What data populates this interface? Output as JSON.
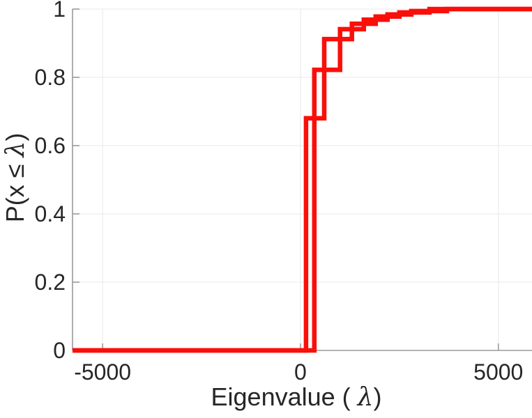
{
  "figure": {
    "background": "#ffffff"
  },
  "chart_data": {
    "type": "line",
    "subtype": "empirical-cdf-step",
    "title": "",
    "xlabel_prefix": "Eigenvalue (  ",
    "xlabel_lambda": "λ",
    "xlabel_suffix": ")",
    "ylabel_prefix": "P(x ≤ ",
    "ylabel_lambda": "λ",
    "ylabel_suffix": ")",
    "xlim": [
      -5760,
      5850
    ],
    "ylim": [
      0,
      1
    ],
    "xticks": [
      -5000,
      0,
      5000
    ],
    "xtick_labels": [
      "-5000",
      "0",
      "5000"
    ],
    "yticks": [
      0,
      0.2,
      0.4,
      0.6,
      0.8,
      1
    ],
    "ytick_labels": [
      "0",
      "0.2",
      "0.4",
      "0.6",
      "0.8",
      "1"
    ],
    "grid": true,
    "legend": null,
    "line_color": "#fa0f0a",
    "line_width": 6.5,
    "axis_color": "#9a9a9a",
    "grid_color": "#ededed",
    "tick_text_color": "#262626",
    "series": [
      {
        "name": "ecdf-curve-1",
        "jump_x": [
          140,
          600,
          1300,
          1900,
          2500,
          3260
        ],
        "jump_y": [
          0.68,
          0.912,
          0.957,
          0.978,
          0.99,
          1.0
        ]
      },
      {
        "name": "ecdf-curve-2",
        "jump_x": [
          350,
          1000,
          1600,
          2200,
          2800,
          3700
        ],
        "jump_y": [
          0.822,
          0.941,
          0.969,
          0.984,
          0.994,
          1.0
        ]
      }
    ]
  }
}
